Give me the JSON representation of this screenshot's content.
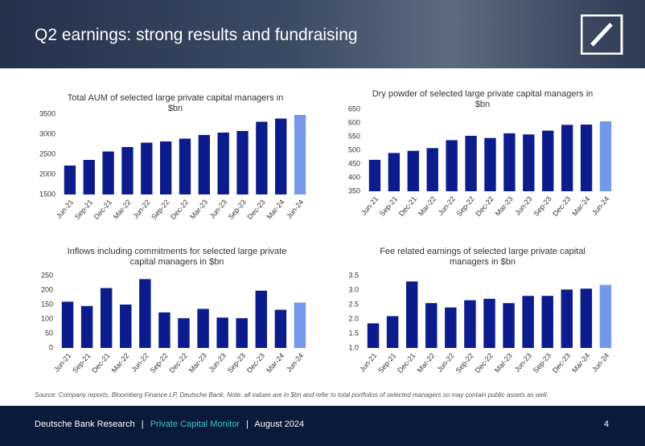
{
  "header": {
    "title": "Q2 earnings: strong results and fundraising"
  },
  "chart_data": [
    {
      "type": "bar",
      "title": "Total AUM of selected large private capital managers in $bn",
      "categories": [
        "Jun-21",
        "Sep-21",
        "Dec-21",
        "Mar-22",
        "Jun-22",
        "Sep-22",
        "Dec-22",
        "Mar-23",
        "Jun-23",
        "Sep-23",
        "Dec-23",
        "Mar-24",
        "Jun-24"
      ],
      "values": [
        2220,
        2360,
        2570,
        2680,
        2790,
        2820,
        2890,
        2980,
        3040,
        3080,
        3310,
        3390,
        3480
      ],
      "colors": [
        "#0c1c8c",
        "#0c1c8c",
        "#0c1c8c",
        "#0c1c8c",
        "#0c1c8c",
        "#0c1c8c",
        "#0c1c8c",
        "#0c1c8c",
        "#0c1c8c",
        "#0c1c8c",
        "#0c1c8c",
        "#0c1c8c",
        "#7399e8"
      ],
      "ylim": [
        1500,
        3500
      ],
      "yticks": [
        1500,
        2000,
        2500,
        3000,
        3500
      ]
    },
    {
      "type": "bar",
      "title": "Dry powder of selected large private capital managers in $bn",
      "categories": [
        "Jun-21",
        "Sep-21",
        "Dec-21",
        "Mar-22",
        "Jun-22",
        "Sep-22",
        "Dec-22",
        "Mar-23",
        "Jun-23",
        "Sep-23",
        "Dec-23",
        "Mar-24",
        "Jun-24"
      ],
      "values": [
        465,
        490,
        498,
        508,
        537,
        553,
        545,
        562,
        558,
        572,
        593,
        594,
        606
      ],
      "colors": [
        "#0c1c8c",
        "#0c1c8c",
        "#0c1c8c",
        "#0c1c8c",
        "#0c1c8c",
        "#0c1c8c",
        "#0c1c8c",
        "#0c1c8c",
        "#0c1c8c",
        "#0c1c8c",
        "#0c1c8c",
        "#0c1c8c",
        "#7399e8"
      ],
      "ylim": [
        350,
        650
      ],
      "yticks": [
        350,
        400,
        450,
        500,
        550,
        600,
        650
      ]
    },
    {
      "type": "bar",
      "title": "Inflows including commitments for selected large private capital managers in $bn",
      "categories": [
        "Jun-21",
        "Sep-21",
        "Dec-21",
        "Mar-22",
        "Jun-22",
        "Sep-22",
        "Dec-22",
        "Mar-23",
        "Jun-23",
        "Sep-23",
        "Dec-23",
        "Mar-24",
        "Jun-24"
      ],
      "values": [
        160,
        145,
        207,
        150,
        238,
        123,
        103,
        135,
        105,
        103,
        198,
        132,
        157
      ],
      "colors": [
        "#0c1c8c",
        "#0c1c8c",
        "#0c1c8c",
        "#0c1c8c",
        "#0c1c8c",
        "#0c1c8c",
        "#0c1c8c",
        "#0c1c8c",
        "#0c1c8c",
        "#0c1c8c",
        "#0c1c8c",
        "#0c1c8c",
        "#7399e8"
      ],
      "ylim": [
        0,
        250
      ],
      "yticks": [
        0,
        50,
        100,
        150,
        200,
        250
      ]
    },
    {
      "type": "bar",
      "title": "Fee related earnings of selected large private capital managers in $bn",
      "categories": [
        "Jun-21",
        "Sep-21",
        "Dec-21",
        "Mar-22",
        "Jun-22",
        "Sep-22",
        "Dec-22",
        "Mar-23",
        "Jun-23",
        "Sep-23",
        "Dec-23",
        "Mar-24",
        "Jun-24"
      ],
      "values": [
        1.85,
        2.1,
        3.3,
        2.55,
        2.4,
        2.65,
        2.7,
        2.55,
        2.8,
        2.8,
        3.02,
        3.05,
        3.18
      ],
      "colors": [
        "#0c1c8c",
        "#0c1c8c",
        "#0c1c8c",
        "#0c1c8c",
        "#0c1c8c",
        "#0c1c8c",
        "#0c1c8c",
        "#0c1c8c",
        "#0c1c8c",
        "#0c1c8c",
        "#0c1c8c",
        "#0c1c8c",
        "#7399e8"
      ],
      "ylim": [
        1.0,
        3.5
      ],
      "yticks": [
        {
          "value": 1.0,
          "label": "1.0"
        },
        1.5,
        {
          "value": 2.0,
          "label": "2.0"
        },
        2.5,
        {
          "value": 3.0,
          "label": "3.0"
        },
        3.5
      ]
    }
  ],
  "source": "Source: Company reports, Bloomberg Finance LP, Deutsche Bank. Note: all values are in $bn and refer to total portfolios of selected managers so may contain public assets as well.",
  "footer": {
    "left": "Deutsche Bank Research",
    "separator": "|",
    "publication": "Private Capital Monitor",
    "date": "August 2024",
    "page": "4"
  }
}
